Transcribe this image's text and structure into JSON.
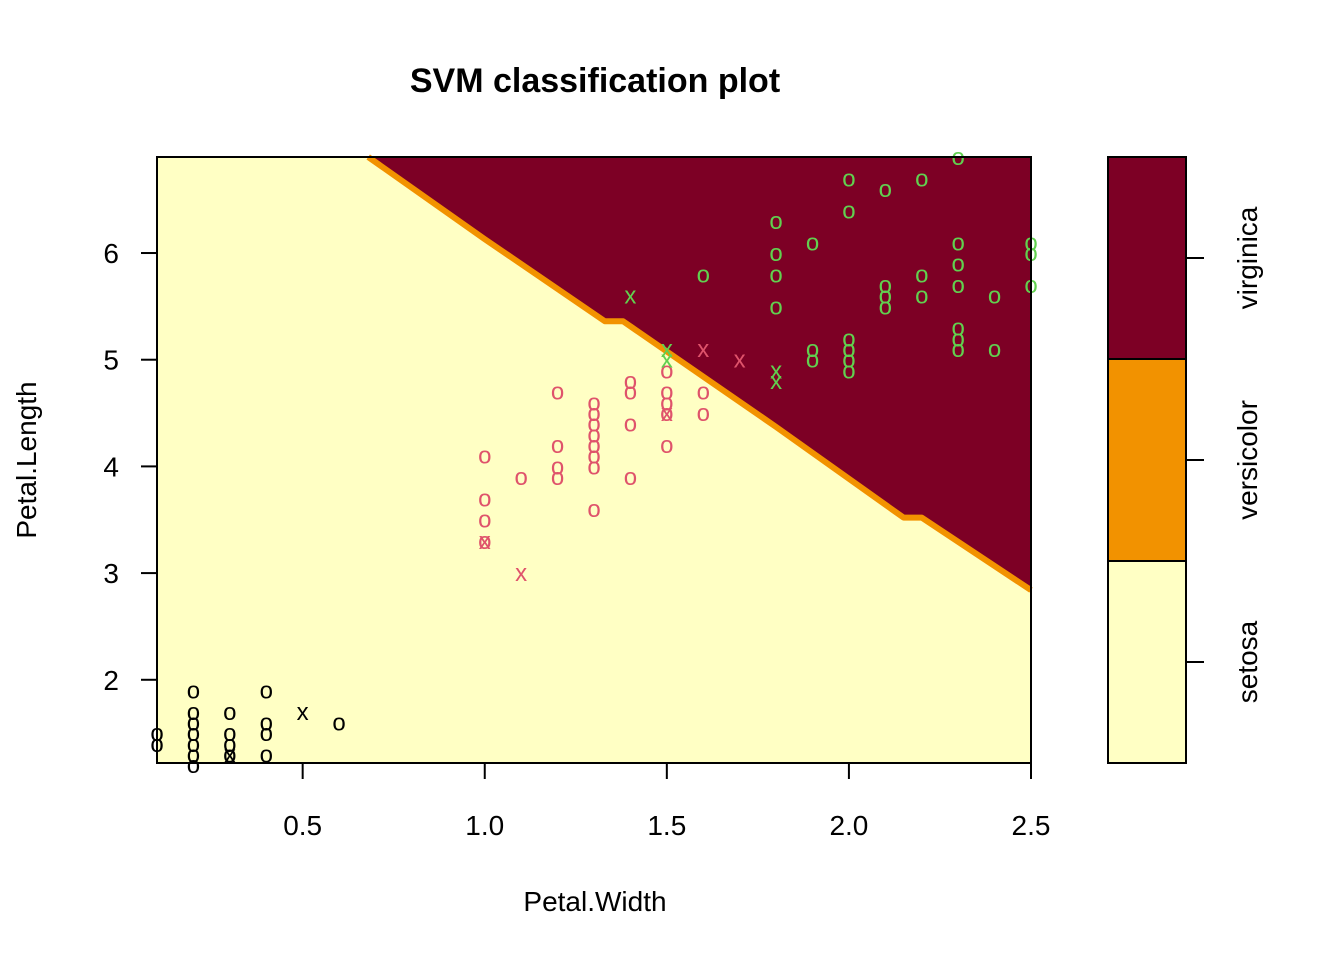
{
  "chart_data": {
    "type": "scatter",
    "title": "SVM classification plot",
    "xlabel": "Petal.Width",
    "ylabel": "Petal.Length",
    "xlim": [
      0.1,
      2.5
    ],
    "ylim": [
      1.22,
      6.9
    ],
    "x_ticks": [
      "0.5",
      "1.0",
      "1.5",
      "2.0",
      "2.5"
    ],
    "x_tick_values": [
      0.5,
      1.0,
      1.5,
      2.0,
      2.5
    ],
    "y_ticks": [
      "2",
      "3",
      "4",
      "5",
      "6"
    ],
    "y_tick_values": [
      2,
      3,
      4,
      5,
      6
    ],
    "decision_boundary": {
      "description": "versicolor/virginica boundary",
      "points": [
        [
          0.68,
          6.9
        ],
        [
          1.0,
          6.13
        ],
        [
          1.33,
          5.36
        ],
        [
          1.38,
          5.36
        ],
        [
          1.8,
          4.37
        ],
        [
          2.15,
          3.52
        ],
        [
          2.2,
          3.52
        ],
        [
          2.5,
          2.84
        ]
      ],
      "above_class": "virginica",
      "below_class": "setosa"
    },
    "classes": [
      {
        "name": "setosa",
        "fill": "#FFFFC4",
        "point_color": "#000000"
      },
      {
        "name": "versicolor",
        "fill": "#F29200",
        "point_color": "#DF536B"
      },
      {
        "name": "virginica",
        "fill": "#7D0025",
        "point_color": "#61D04F"
      }
    ],
    "boundary_color": "#F29200",
    "series": [
      {
        "name": "setosa",
        "points": [
          {
            "x": 0.1,
            "y": 1.5,
            "m": "o"
          },
          {
            "x": 0.1,
            "y": 1.4,
            "m": "o"
          },
          {
            "x": 0.2,
            "y": 1.9,
            "m": "o"
          },
          {
            "x": 0.2,
            "y": 1.7,
            "m": "o"
          },
          {
            "x": 0.2,
            "y": 1.6,
            "m": "o"
          },
          {
            "x": 0.2,
            "y": 1.5,
            "m": "o"
          },
          {
            "x": 0.2,
            "y": 1.4,
            "m": "o"
          },
          {
            "x": 0.2,
            "y": 1.3,
            "m": "o"
          },
          {
            "x": 0.2,
            "y": 1.2,
            "m": "o"
          },
          {
            "x": 0.3,
            "y": 1.7,
            "m": "o"
          },
          {
            "x": 0.3,
            "y": 1.5,
            "m": "o"
          },
          {
            "x": 0.3,
            "y": 1.4,
            "m": "o"
          },
          {
            "x": 0.3,
            "y": 1.3,
            "m": "o"
          },
          {
            "x": 0.3,
            "y": 1.3,
            "m": "x"
          },
          {
            "x": 0.4,
            "y": 1.9,
            "m": "o"
          },
          {
            "x": 0.4,
            "y": 1.6,
            "m": "o"
          },
          {
            "x": 0.4,
            "y": 1.5,
            "m": "o"
          },
          {
            "x": 0.4,
            "y": 1.3,
            "m": "o"
          },
          {
            "x": 0.5,
            "y": 1.7,
            "m": "x"
          },
          {
            "x": 0.6,
            "y": 1.6,
            "m": "o"
          }
        ]
      },
      {
        "name": "versicolor",
        "points": [
          {
            "x": 1.0,
            "y": 4.1,
            "m": "o"
          },
          {
            "x": 1.0,
            "y": 3.7,
            "m": "o"
          },
          {
            "x": 1.0,
            "y": 3.5,
            "m": "o"
          },
          {
            "x": 1.0,
            "y": 3.3,
            "m": "o"
          },
          {
            "x": 1.0,
            "y": 3.3,
            "m": "x"
          },
          {
            "x": 1.1,
            "y": 3.9,
            "m": "o"
          },
          {
            "x": 1.1,
            "y": 3.0,
            "m": "x"
          },
          {
            "x": 1.2,
            "y": 4.7,
            "m": "o"
          },
          {
            "x": 1.2,
            "y": 4.2,
            "m": "o"
          },
          {
            "x": 1.2,
            "y": 4.0,
            "m": "o"
          },
          {
            "x": 1.2,
            "y": 3.9,
            "m": "o"
          },
          {
            "x": 1.3,
            "y": 4.6,
            "m": "o"
          },
          {
            "x": 1.3,
            "y": 4.5,
            "m": "o"
          },
          {
            "x": 1.3,
            "y": 4.4,
            "m": "o"
          },
          {
            "x": 1.3,
            "y": 4.3,
            "m": "o"
          },
          {
            "x": 1.3,
            "y": 4.2,
            "m": "o"
          },
          {
            "x": 1.3,
            "y": 4.1,
            "m": "o"
          },
          {
            "x": 1.3,
            "y": 4.0,
            "m": "o"
          },
          {
            "x": 1.3,
            "y": 3.6,
            "m": "o"
          },
          {
            "x": 1.4,
            "y": 4.8,
            "m": "o"
          },
          {
            "x": 1.4,
            "y": 4.7,
            "m": "o"
          },
          {
            "x": 1.4,
            "y": 4.4,
            "m": "o"
          },
          {
            "x": 1.4,
            "y": 3.9,
            "m": "o"
          },
          {
            "x": 1.5,
            "y": 4.9,
            "m": "o"
          },
          {
            "x": 1.5,
            "y": 4.7,
            "m": "o"
          },
          {
            "x": 1.5,
            "y": 4.6,
            "m": "o"
          },
          {
            "x": 1.5,
            "y": 4.5,
            "m": "o"
          },
          {
            "x": 1.5,
            "y": 4.5,
            "m": "x"
          },
          {
            "x": 1.5,
            "y": 4.2,
            "m": "o"
          },
          {
            "x": 1.6,
            "y": 5.1,
            "m": "x"
          },
          {
            "x": 1.6,
            "y": 4.7,
            "m": "o"
          },
          {
            "x": 1.6,
            "y": 4.5,
            "m": "o"
          },
          {
            "x": 1.7,
            "y": 5.0,
            "m": "x"
          }
        ]
      },
      {
        "name": "virginica",
        "points": [
          {
            "x": 1.4,
            "y": 5.6,
            "m": "x"
          },
          {
            "x": 1.5,
            "y": 5.1,
            "m": "x"
          },
          {
            "x": 1.5,
            "y": 5.0,
            "m": "x"
          },
          {
            "x": 1.6,
            "y": 5.8,
            "m": "o"
          },
          {
            "x": 1.8,
            "y": 6.3,
            "m": "o"
          },
          {
            "x": 1.8,
            "y": 6.0,
            "m": "o"
          },
          {
            "x": 1.8,
            "y": 5.8,
            "m": "o"
          },
          {
            "x": 1.8,
            "y": 5.5,
            "m": "o"
          },
          {
            "x": 1.8,
            "y": 4.9,
            "m": "x"
          },
          {
            "x": 1.8,
            "y": 4.8,
            "m": "x"
          },
          {
            "x": 1.9,
            "y": 6.1,
            "m": "o"
          },
          {
            "x": 1.9,
            "y": 5.1,
            "m": "o"
          },
          {
            "x": 1.9,
            "y": 5.0,
            "m": "o"
          },
          {
            "x": 2.0,
            "y": 6.7,
            "m": "o"
          },
          {
            "x": 2.0,
            "y": 6.4,
            "m": "o"
          },
          {
            "x": 2.0,
            "y": 5.2,
            "m": "o"
          },
          {
            "x": 2.0,
            "y": 5.1,
            "m": "o"
          },
          {
            "x": 2.0,
            "y": 5.0,
            "m": "o"
          },
          {
            "x": 2.0,
            "y": 4.9,
            "m": "o"
          },
          {
            "x": 2.1,
            "y": 6.6,
            "m": "o"
          },
          {
            "x": 2.1,
            "y": 5.7,
            "m": "o"
          },
          {
            "x": 2.1,
            "y": 5.6,
            "m": "o"
          },
          {
            "x": 2.1,
            "y": 5.5,
            "m": "o"
          },
          {
            "x": 2.2,
            "y": 6.7,
            "m": "o"
          },
          {
            "x": 2.2,
            "y": 5.8,
            "m": "o"
          },
          {
            "x": 2.2,
            "y": 5.6,
            "m": "o"
          },
          {
            "x": 2.3,
            "y": 6.9,
            "m": "o"
          },
          {
            "x": 2.3,
            "y": 6.1,
            "m": "o"
          },
          {
            "x": 2.3,
            "y": 5.9,
            "m": "o"
          },
          {
            "x": 2.3,
            "y": 5.7,
            "m": "o"
          },
          {
            "x": 2.3,
            "y": 5.3,
            "m": "o"
          },
          {
            "x": 2.3,
            "y": 5.2,
            "m": "o"
          },
          {
            "x": 2.3,
            "y": 5.1,
            "m": "o"
          },
          {
            "x": 2.4,
            "y": 5.6,
            "m": "o"
          },
          {
            "x": 2.4,
            "y": 5.1,
            "m": "o"
          },
          {
            "x": 2.5,
            "y": 6.1,
            "m": "o"
          },
          {
            "x": 2.5,
            "y": 6.0,
            "m": "o"
          },
          {
            "x": 2.5,
            "y": 5.7,
            "m": "o"
          }
        ]
      }
    ],
    "legend": {
      "position": "right",
      "labels": [
        "setosa",
        "versicolor",
        "virginica"
      ]
    }
  }
}
